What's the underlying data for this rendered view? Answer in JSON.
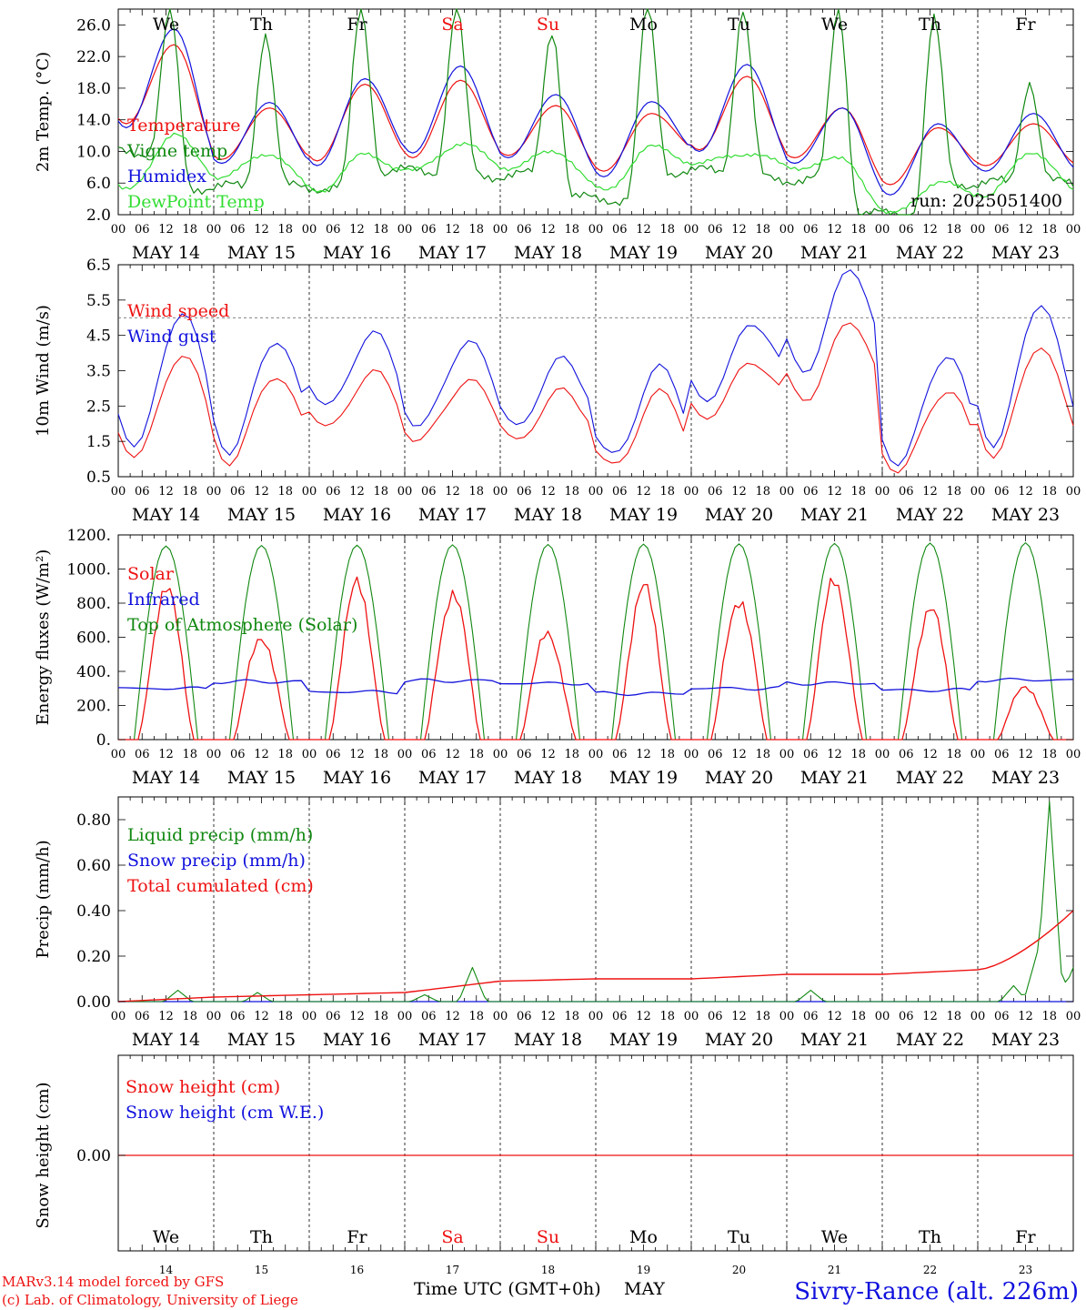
{
  "colors": {
    "red": "#ee1111",
    "green": "#118811",
    "blue": "#1111dd",
    "light_green": "#33dd33"
  },
  "days": [
    "We",
    "Th",
    "Fr",
    "Sa",
    "Su",
    "Mo",
    "Tu",
    "We",
    "Th",
    "Fr"
  ],
  "weekend_days": [
    "Sa",
    "Su"
  ],
  "dates": [
    "MAY 14",
    "MAY 15",
    "MAY 16",
    "MAY 17",
    "MAY 18",
    "MAY 19",
    "MAY 20",
    "MAY 21",
    "MAY 22",
    "MAY 23"
  ],
  "day_numbers": [
    "14",
    "15",
    "16",
    "17",
    "18",
    "19",
    "20",
    "21",
    "22",
    "23"
  ],
  "hour_ticks": [
    "00",
    "06",
    "12",
    "18"
  ],
  "hour_end": "00",
  "footer": {
    "credit_line1": "MARv3.14 model forced by GFS",
    "credit_line2": "(c) Lab. of Climatology, University of Liege",
    "xlabel": "Time UTC (GMT+0h)",
    "month": "MAY",
    "station": "Sivry-Rance (alt. 226m)"
  },
  "chart_data": [
    {
      "type": "line",
      "ylabel": "2m Temp. (°C)",
      "ylim": [
        2,
        28
      ],
      "yticks": [
        "26.0",
        "22.0",
        "18.0",
        "14.0",
        "10.0",
        "6.0",
        "2.0"
      ],
      "annotation": "run: 2025051400",
      "day_maxima": {
        "Temperature": [
          23.5,
          15.5,
          18.5,
          19.0,
          15.8,
          14.8,
          19.5,
          15.5,
          13.0,
          13.5
        ],
        "Humidex": [
          25.5,
          16.2,
          19.2,
          20.8,
          17.2,
          16.3,
          21.0,
          15.5,
          13.5,
          14.8
        ],
        "Vigne temp": [
          27.5,
          25.0,
          28.0,
          28.0,
          25.5,
          28.0,
          28.0,
          28.0,
          26.5,
          19.0
        ],
        "DewPoint Temp": [
          12.0,
          9.8,
          9.5,
          11.0,
          10.0,
          10.5,
          9.8,
          9.0,
          6.0,
          10.0
        ]
      },
      "day_minima": {
        "Temperature": [
          13.5,
          9.0,
          8.8,
          9.2,
          9.5,
          7.5,
          10.2,
          9.2,
          5.8,
          8.2
        ],
        "Humidex": [
          13.0,
          8.5,
          8.2,
          9.8,
          9.2,
          6.8,
          10.0,
          8.5,
          4.5,
          7.5
        ],
        "Vigne temp": [
          10.0,
          5.5,
          5.5,
          7.5,
          7.0,
          4.0,
          7.5,
          6.5,
          2.0,
          6.0
        ],
        "DewPoint Temp": [
          5.0,
          6.8,
          5.0,
          7.5,
          8.0,
          5.0,
          8.5,
          8.0,
          2.0,
          4.5
        ]
      },
      "series": [
        {
          "name": "Temperature",
          "color": "#ee1111"
        },
        {
          "name": "Vigne temp",
          "color": "#118811"
        },
        {
          "name": "Humidex",
          "color": "#1111dd"
        },
        {
          "name": "DewPoint Temp",
          "color": "#33dd33"
        }
      ]
    },
    {
      "type": "line",
      "ylabel": "10m Wind (m/s)",
      "ylim": [
        0.5,
        6.5
      ],
      "yticks": [
        "6.5",
        "5.5",
        "4.5",
        "3.5",
        "2.5",
        "1.5",
        "0.5"
      ],
      "threshold": 5.0,
      "day_peaks": {
        "Wind speed": [
          4.0,
          3.4,
          3.4,
          3.3,
          2.9,
          2.9,
          3.8,
          4.8,
          3.0,
          4.2
        ],
        "Wind gust": [
          5.2,
          4.4,
          4.5,
          4.4,
          3.8,
          3.6,
          4.9,
          6.3,
          4.0,
          5.4
        ]
      },
      "day_troughs": {
        "Wind speed": [
          1.0,
          1.0,
          1.9,
          1.5,
          1.6,
          0.7,
          2.2,
          2.7,
          0.6,
          1.2
        ],
        "Wind gust": [
          1.3,
          1.3,
          2.5,
          1.9,
          2.0,
          1.0,
          2.7,
          3.5,
          0.8,
          1.5
        ]
      },
      "series": [
        {
          "name": "Wind speed",
          "color": "#ee1111"
        },
        {
          "name": "Wind gust",
          "color": "#1111dd"
        }
      ]
    },
    {
      "type": "line",
      "ylabel": "Energy fluxes (W/m²)",
      "ylim": [
        0,
        1200
      ],
      "yticks": [
        "1200.",
        "1000.",
        "800.",
        "600.",
        "400.",
        "200.",
        "0."
      ],
      "day_peaks": {
        "Solar": [
          870,
          620,
          880,
          870,
          630,
          870,
          850,
          900,
          770,
          320
        ],
        "Top of Atmosphere (Solar)": [
          1135,
          1138,
          1140,
          1142,
          1144,
          1146,
          1148,
          1150,
          1152,
          1154
        ]
      },
      "infrared_level": [
        300,
        340,
        280,
        345,
        330,
        270,
        300,
        330,
        290,
        350
      ],
      "series": [
        {
          "name": "Solar",
          "color": "#ee1111"
        },
        {
          "name": "Infrared",
          "color": "#1111dd"
        },
        {
          "name": "Top of Atmosphere (Solar)",
          "color": "#118811"
        }
      ]
    },
    {
      "type": "line",
      "ylabel": "Precip (mm/h)",
      "ylim": [
        0,
        0.9
      ],
      "yticks": [
        "0.80",
        "0.60",
        "0.40",
        "0.20",
        "0.00"
      ],
      "liquid_peaks": [
        {
          "day": 0,
          "hour": 15,
          "value": 0.05
        },
        {
          "day": 1,
          "hour": 11,
          "value": 0.04
        },
        {
          "day": 3,
          "hour": 5,
          "value": 0.03
        },
        {
          "day": 3,
          "hour": 17,
          "value": 0.15
        },
        {
          "day": 7,
          "hour": 6,
          "value": 0.05
        },
        {
          "day": 9,
          "hour": 9,
          "value": 0.07
        },
        {
          "day": 9,
          "hour": 12,
          "value": 0.03
        },
        {
          "day": 9,
          "hour": 15,
          "value": 0.22
        },
        {
          "day": 9,
          "hour": 18,
          "value": 0.88
        },
        {
          "day": 9,
          "hour": 21,
          "value": 0.12
        },
        {
          "day": 9,
          "hour": 24,
          "value": 0.15
        }
      ],
      "total_cumulated": [
        0.0,
        0.02,
        0.03,
        0.04,
        0.09,
        0.1,
        0.1,
        0.12,
        0.12,
        0.14,
        0.4
      ],
      "series": [
        {
          "name": "Liquid precip (mm/h)",
          "color": "#118811"
        },
        {
          "name": "Snow precip (mm/h)",
          "color": "#1111dd"
        },
        {
          "name": "Total cumulated (cm)",
          "color": "#ee1111"
        }
      ]
    },
    {
      "type": "line",
      "ylabel": "Snow height (cm)",
      "yticks": [
        "0.00"
      ],
      "values_constant": 0.0,
      "series": [
        {
          "name": "Snow height (cm)",
          "color": "#ee1111"
        },
        {
          "name": "Snow height (cm W.E.)",
          "color": "#1111dd"
        }
      ]
    }
  ]
}
